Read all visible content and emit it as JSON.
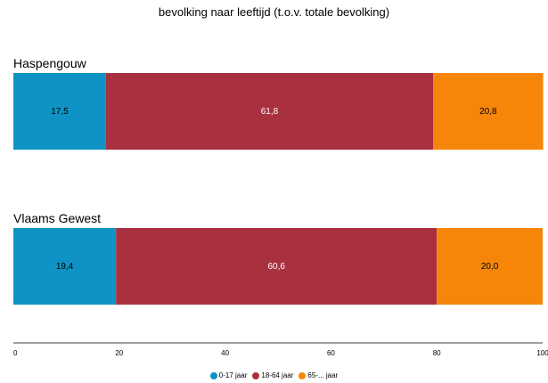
{
  "chart_data": {
    "type": "bar",
    "orientation": "horizontal",
    "stacked": true,
    "title": "bevolking naar leeftijd (t.o.v. totale bevolking)",
    "categories": [
      "Haspengouw",
      "Vlaams Gewest"
    ],
    "series": [
      {
        "name": "0-17 jaar",
        "color": "#0e93c4",
        "values": [
          17.5,
          19.4
        ],
        "value_labels": [
          "17,5",
          "19,4"
        ],
        "label_color": "#000000"
      },
      {
        "name": "18-64 jaar",
        "color": "#a8303f",
        "values": [
          61.8,
          60.6
        ],
        "value_labels": [
          "61,8",
          "60,6"
        ],
        "label_color": "#ffffff"
      },
      {
        "name": "65-... jaar",
        "color": "#f5860a",
        "values": [
          20.8,
          20.0
        ],
        "value_labels": [
          "20,8",
          "20,0"
        ],
        "label_color": "#000000"
      }
    ],
    "xlim": [
      0,
      100
    ],
    "xticks": [
      0,
      20,
      40,
      60,
      80,
      100
    ],
    "grid": false,
    "legend_position": "bottom"
  }
}
